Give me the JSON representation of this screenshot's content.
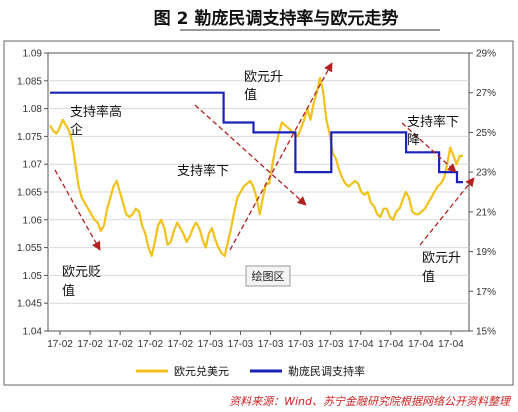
{
  "title": "图 2  勒庞民调支持率与欧元走势",
  "source_note": "资料来源：Wind、苏宁金融研究院根据网络公开资料整理",
  "plot_area_tag": "绘图区",
  "colors": {
    "eurusd": "#f2c21b",
    "support": "#1a22b8",
    "arrow": "#b22222",
    "grid": "#d9d9d9",
    "frame": "#555555"
  },
  "annotations": [
    {
      "lines": [
        "支持率高",
        "企"
      ]
    },
    {
      "lines": [
        "欧元贬",
        "值"
      ]
    },
    {
      "lines": [
        "支持率下"
      ]
    },
    {
      "lines": [
        "欧元升",
        "值"
      ]
    },
    {
      "lines": [
        "支持率下",
        "降"
      ]
    },
    {
      "lines": [
        "欧元升",
        "值"
      ]
    }
  ],
  "chart_data": {
    "type": "line",
    "x_tick_labels": [
      "17-02",
      "17-02",
      "17-02",
      "17-02",
      "17-02",
      "17-03",
      "17-03",
      "17-03",
      "17-03",
      "17-03",
      "17-04",
      "17-04",
      "17-04",
      "17-04"
    ],
    "y_left": {
      "min": 1.04,
      "max": 1.09,
      "step": 0.005,
      "ticks": [
        "1.04",
        "1.045",
        "1.05",
        "1.055",
        "1.06",
        "1.065",
        "1.07",
        "1.075",
        "1.08",
        "1.085",
        "1.09"
      ]
    },
    "y_right": {
      "min": 15,
      "max": 29,
      "step": 2,
      "unit": "%",
      "ticks": [
        "15%",
        "17%",
        "19%",
        "21%",
        "23%",
        "25%",
        "27%",
        "29%"
      ]
    },
    "grid": "horizontal",
    "legend_position": "bottom",
    "series": [
      {
        "name": "欧元兑美元",
        "axis": "left",
        "values": [
          1.077,
          1.076,
          1.0755,
          1.0765,
          1.078,
          1.077,
          1.076,
          1.074,
          1.07,
          1.066,
          1.064,
          1.063,
          1.062,
          1.061,
          1.06,
          1.0595,
          1.058,
          1.059,
          1.062,
          1.064,
          1.066,
          1.067,
          1.065,
          1.063,
          1.061,
          1.0605,
          1.061,
          1.062,
          1.0615,
          1.059,
          1.0575,
          1.055,
          1.0535,
          1.056,
          1.059,
          1.06,
          1.0585,
          1.0555,
          1.056,
          1.058,
          1.0595,
          1.0585,
          1.0575,
          1.056,
          1.057,
          1.0585,
          1.0595,
          1.0585,
          1.0565,
          1.055,
          1.0575,
          1.0585,
          1.0565,
          1.055,
          1.054,
          1.0535,
          1.056,
          1.0585,
          1.0615,
          1.064,
          1.065,
          1.066,
          1.0665,
          1.067,
          1.066,
          1.064,
          1.061,
          1.064,
          1.0665,
          1.0665,
          1.07,
          1.073,
          1.0755,
          1.0775,
          1.077,
          1.0765,
          1.076,
          1.0755,
          1.075,
          1.0765,
          1.078,
          1.08,
          1.078,
          1.081,
          1.083,
          1.0855,
          1.083,
          1.078,
          1.0755,
          1.072,
          1.071,
          1.069,
          1.0675,
          1.0665,
          1.066,
          1.0665,
          1.067,
          1.0665,
          1.065,
          1.0645,
          1.065,
          1.063,
          1.0625,
          1.061,
          1.0605,
          1.062,
          1.062,
          1.0605,
          1.06,
          1.0615,
          1.062,
          1.0635,
          1.065,
          1.064,
          1.0615,
          1.061,
          1.061,
          1.0615,
          1.062,
          1.063,
          1.064,
          1.065,
          1.066,
          1.0665,
          1.0675,
          1.07,
          1.073,
          1.0715,
          1.07,
          1.0715,
          1.0715
        ]
      },
      {
        "name": "勒庞民调支持率",
        "axis": "right",
        "values": [
          27,
          27,
          27,
          27,
          27,
          27,
          27,
          27,
          27,
          27,
          27,
          27,
          27,
          27,
          27,
          27,
          27,
          27,
          27,
          27,
          27,
          27,
          27,
          27,
          27,
          27,
          27,
          27,
          27,
          27,
          27,
          27,
          27,
          27,
          27,
          27,
          27,
          27,
          27,
          27,
          27,
          27,
          27,
          27,
          27,
          27,
          27,
          27,
          27,
          27,
          27,
          27,
          27,
          27,
          27,
          27,
          27,
          27,
          25.5,
          25.5,
          25.5,
          25.5,
          25.5,
          25.5,
          25.5,
          25.5,
          25.5,
          25.5,
          25,
          25,
          25,
          25,
          25,
          25,
          25,
          25,
          25,
          25,
          25,
          25,
          25,
          25,
          23,
          23,
          23,
          23,
          23,
          23,
          23,
          23,
          23,
          23,
          23,
          23,
          25,
          25,
          25,
          25,
          25,
          25,
          25,
          25,
          25,
          25,
          25,
          25,
          25,
          25,
          25,
          25,
          25,
          25,
          25,
          25,
          25,
          25,
          25,
          25,
          25,
          24,
          24,
          24,
          24,
          24,
          24,
          24,
          24,
          24,
          24,
          24,
          23,
          23,
          23,
          23,
          23,
          23,
          22.5,
          22.5,
          22.5
        ]
      }
    ]
  }
}
